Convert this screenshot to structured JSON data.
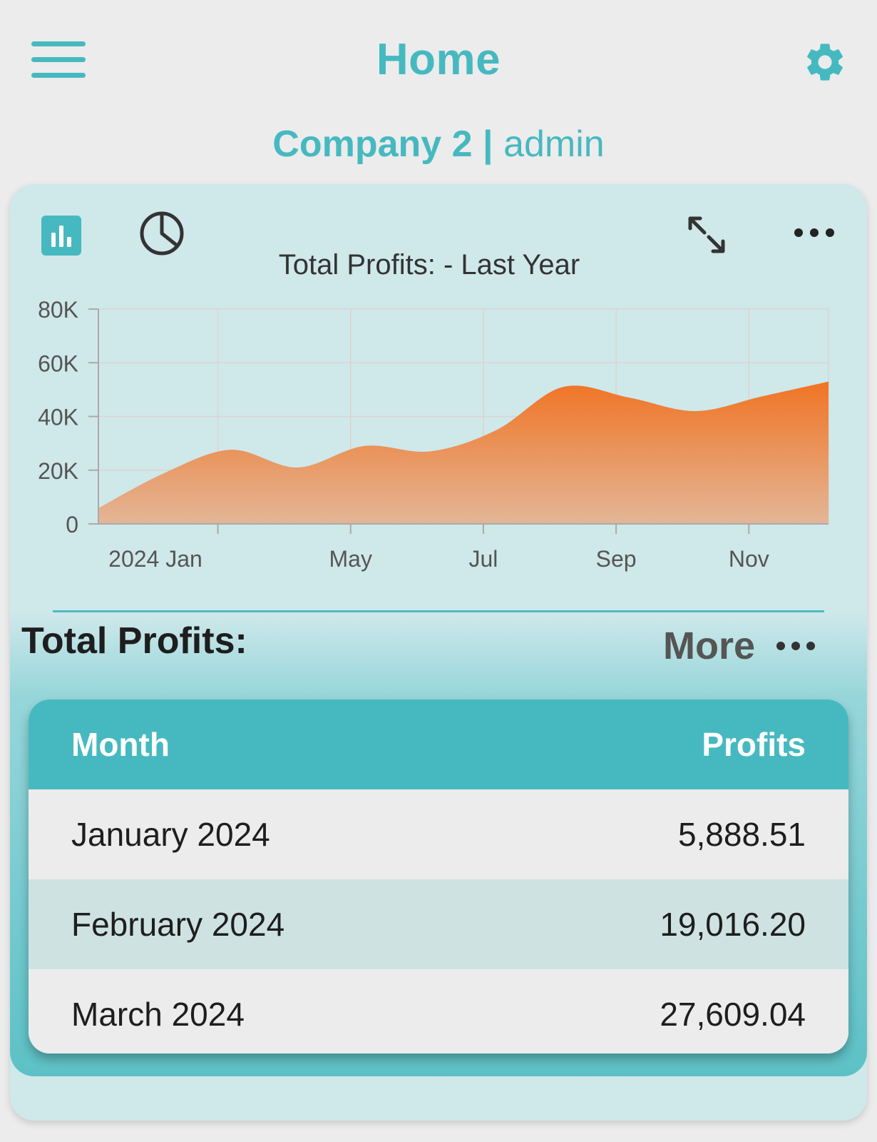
{
  "header": {
    "title": "Home",
    "company": "Company 2",
    "separator": "|",
    "user": "admin"
  },
  "colors": {
    "accent": "#46b9c0",
    "area_top": "#f07424",
    "area_bottom": "#e3b697",
    "card_bg": "#cfe8ea"
  },
  "icons": {
    "menu": "menu-icon",
    "settings": "gear-icon",
    "bar_chart": "bar-chart-icon",
    "pie_chart": "pie-chart-icon",
    "expand": "expand-icon",
    "more": "more-horizontal-icon"
  },
  "chart_data": {
    "type": "area",
    "title": "Total Profits: - Last Year",
    "xlabel": "",
    "ylabel": "",
    "x": [
      "2024-01",
      "2024-02",
      "2024-03",
      "2024-04",
      "2024-05",
      "2024-06",
      "2024-07",
      "2024-08",
      "2024-09",
      "2024-10",
      "2024-11",
      "2024-12"
    ],
    "x_tick_labels": [
      "2024 Jan",
      "May",
      "Jul",
      "Sep",
      "Nov"
    ],
    "y_tick_labels": [
      "80K",
      "60K",
      "40K",
      "20K",
      "0"
    ],
    "series": [
      {
        "values": [
          5888.51,
          19016.2,
          27609.04,
          21000,
          29000,
          27000,
          35000,
          51000,
          47000,
          42000,
          47500,
          53000
        ]
      }
    ],
    "ylim": [
      0,
      80000
    ],
    "grid": true,
    "legend": "none"
  },
  "summary": {
    "title": "Total Profits:",
    "more_label": "More"
  },
  "table": {
    "headers": {
      "month": "Month",
      "profits": "Profits"
    },
    "rows": [
      {
        "month": "January 2024",
        "profits": "5,888.51"
      },
      {
        "month": "February 2024",
        "profits": "19,016.20"
      },
      {
        "month": "March 2024",
        "profits": "27,609.04"
      }
    ]
  }
}
